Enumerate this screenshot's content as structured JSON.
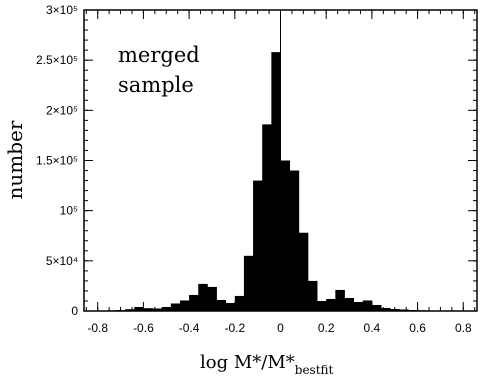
{
  "chart_data": {
    "type": "histogram",
    "title": "",
    "annotation_lines": [
      "merged",
      "sample"
    ],
    "xlabel": "log M*/M*",
    "xlabel_subscript": "bestfit",
    "ylabel": "number",
    "xlim": [
      -0.86,
      0.86
    ],
    "ylim": [
      0,
      300000
    ],
    "grid": false,
    "bin_width": 0.04,
    "bins": [
      {
        "x0": -0.8,
        "x1": -0.76,
        "value": 300
      },
      {
        "x0": -0.76,
        "x1": -0.72,
        "value": 600
      },
      {
        "x0": -0.72,
        "x1": -0.68,
        "value": 900
      },
      {
        "x0": -0.68,
        "x1": -0.64,
        "value": 1800
      },
      {
        "x0": -0.64,
        "x1": -0.6,
        "value": 4000
      },
      {
        "x0": -0.6,
        "x1": -0.56,
        "value": 2800
      },
      {
        "x0": -0.56,
        "x1": -0.52,
        "value": 2500
      },
      {
        "x0": -0.52,
        "x1": -0.48,
        "value": 4000
      },
      {
        "x0": -0.48,
        "x1": -0.44,
        "value": 7500
      },
      {
        "x0": -0.44,
        "x1": -0.4,
        "value": 10500
      },
      {
        "x0": -0.4,
        "x1": -0.36,
        "value": 16000
      },
      {
        "x0": -0.36,
        "x1": -0.32,
        "value": 27000
      },
      {
        "x0": -0.32,
        "x1": -0.28,
        "value": 24000
      },
      {
        "x0": -0.28,
        "x1": -0.24,
        "value": 11000
      },
      {
        "x0": -0.24,
        "x1": -0.2,
        "value": 8000
      },
      {
        "x0": -0.2,
        "x1": -0.16,
        "value": 15000
      },
      {
        "x0": -0.16,
        "x1": -0.12,
        "value": 55000
      },
      {
        "x0": -0.12,
        "x1": -0.08,
        "value": 130000
      },
      {
        "x0": -0.08,
        "x1": -0.04,
        "value": 186000
      },
      {
        "x0": -0.04,
        "x1": 0.0,
        "value": 258000
      },
      {
        "x0": 0.0,
        "x1": 0.04,
        "value": 150000
      },
      {
        "x0": 0.04,
        "x1": 0.08,
        "value": 140000
      },
      {
        "x0": 0.08,
        "x1": 0.12,
        "value": 78000
      },
      {
        "x0": 0.12,
        "x1": 0.16,
        "value": 30000
      },
      {
        "x0": 0.16,
        "x1": 0.2,
        "value": 10000
      },
      {
        "x0": 0.2,
        "x1": 0.24,
        "value": 12000
      },
      {
        "x0": 0.24,
        "x1": 0.28,
        "value": 21000
      },
      {
        "x0": 0.28,
        "x1": 0.32,
        "value": 13000
      },
      {
        "x0": 0.32,
        "x1": 0.36,
        "value": 9000
      },
      {
        "x0": 0.36,
        "x1": 0.4,
        "value": 10500
      },
      {
        "x0": 0.4,
        "x1": 0.44,
        "value": 6000
      },
      {
        "x0": 0.44,
        "x1": 0.48,
        "value": 3000
      },
      {
        "x0": 0.48,
        "x1": 0.52,
        "value": 2000
      },
      {
        "x0": 0.52,
        "x1": 0.56,
        "value": 1500
      },
      {
        "x0": 0.56,
        "x1": 0.6,
        "value": 1000
      },
      {
        "x0": 0.6,
        "x1": 0.64,
        "value": 700
      },
      {
        "x0": 0.64,
        "x1": 0.68,
        "value": 400
      }
    ],
    "reference_line_x": 0,
    "x_ticks": [
      {
        "value": -0.8,
        "label": "-0.8"
      },
      {
        "value": -0.6,
        "label": "-0.6"
      },
      {
        "value": -0.4,
        "label": "-0.4"
      },
      {
        "value": -0.2,
        "label": "-0.2"
      },
      {
        "value": 0.0,
        "label": "0"
      },
      {
        "value": 0.2,
        "label": "0.2"
      },
      {
        "value": 0.4,
        "label": "0.4"
      },
      {
        "value": 0.6,
        "label": "0.6"
      },
      {
        "value": 0.8,
        "label": "0.8"
      }
    ],
    "y_ticks": [
      {
        "value": 0,
        "label": "0"
      },
      {
        "value": 50000,
        "label": "5×10⁴"
      },
      {
        "value": 100000,
        "label": "10⁵"
      },
      {
        "value": 150000,
        "label": "1.5×10⁵"
      },
      {
        "value": 200000,
        "label": "2×10⁵"
      },
      {
        "value": 250000,
        "label": "2.5×10⁵"
      },
      {
        "value": 300000,
        "label": "3×10⁵"
      }
    ],
    "x_minor_step": 0.05,
    "y_minor_step": 10000,
    "bar_color": "#000000"
  }
}
